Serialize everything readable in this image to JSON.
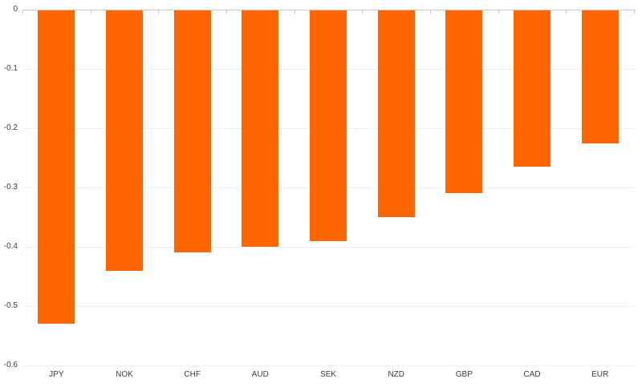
{
  "chart_data": {
    "type": "bar",
    "orientation": "vertical",
    "title": "",
    "xlabel": "",
    "ylabel": "",
    "categories": [
      "JPY",
      "NOK",
      "CHF",
      "AUD",
      "SEK",
      "NZD",
      "GBP",
      "CAD",
      "EUR"
    ],
    "values": [
      -0.53,
      -0.44,
      -0.41,
      -0.4,
      -0.39,
      -0.35,
      -0.31,
      -0.265,
      -0.225
    ],
    "ylim": [
      -0.6,
      0
    ],
    "yticks": [
      0,
      -0.1,
      -0.2,
      -0.3,
      -0.4,
      -0.5,
      -0.6
    ],
    "ytick_labels": [
      "0",
      "-0.1",
      "-0.2",
      "-0.3",
      "-0.4",
      "-0.5",
      "-0.6"
    ],
    "grid": true,
    "legend": "none",
    "colors": {
      "bar": "#FF6600",
      "zero_axis_line": "#C9C9C9",
      "gridline": "#F0F0F0",
      "tick_label": "#3F3F3F"
    }
  }
}
